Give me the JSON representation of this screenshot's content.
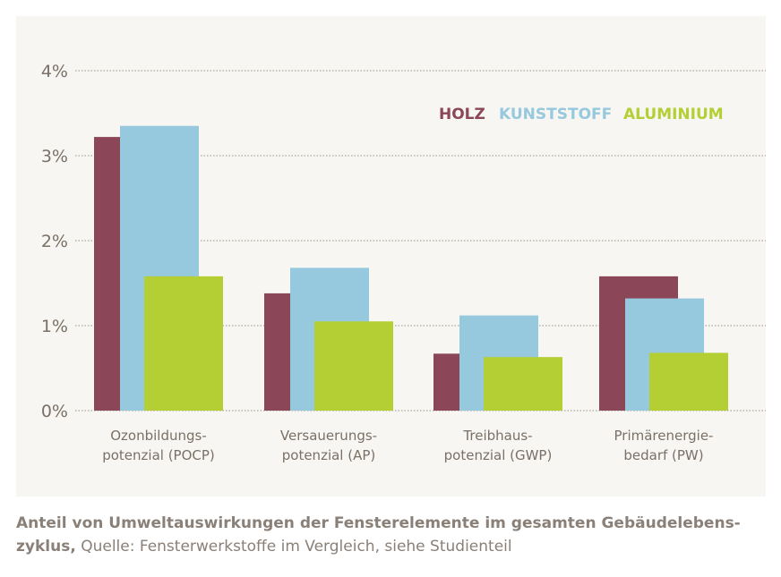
{
  "chart_data": {
    "type": "bar",
    "categories": [
      [
        "Ozonbildungs-",
        "potenzial (POCP)"
      ],
      [
        "Versauerungs-",
        "potenzial (AP)"
      ],
      [
        "Treibhaus-",
        "potenzial (GWP)"
      ],
      [
        "Primärenergie-",
        "bedarf (PW)"
      ]
    ],
    "series": [
      {
        "name": "HOLZ",
        "color": "#8b4658",
        "values": [
          3.22,
          1.38,
          0.67,
          1.58
        ]
      },
      {
        "name": "KUNSTSTOFF",
        "color": "#96c8de",
        "values": [
          3.35,
          1.68,
          1.12,
          1.32
        ]
      },
      {
        "name": "ALUMINIUM",
        "color": "#b3cf34",
        "values": [
          1.58,
          1.05,
          0.63,
          0.68
        ]
      }
    ],
    "yticks": [
      "0%",
      "1%",
      "2%",
      "3%",
      "4%"
    ],
    "ylim": [
      0,
      4
    ],
    "grid": "dotted horizontal",
    "legend": "top-right",
    "text_color": "#7a7066"
  },
  "caption": {
    "bold": "Anteil von Umweltauswirkungen der Fensterelemente im gesamten Gebäudelebens-zyklus,",
    "normal": " Quelle: Fensterwerkstoffe im Vergleich, siehe Studienteil"
  }
}
